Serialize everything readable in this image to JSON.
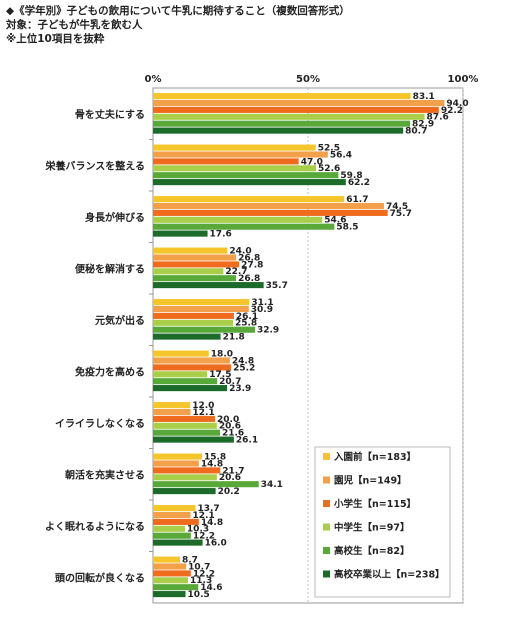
{
  "header": {
    "title": "◆《学年別》子どもの飲用について牛乳に期待すること（複数回答形式）",
    "subject": "対象：子どもが牛乳を飲む人",
    "note": "※上位10項目を抜粋"
  },
  "chart_data": {
    "type": "bar",
    "orientation": "horizontal",
    "xlim": [
      0,
      100
    ],
    "ticks": [
      "0%",
      "50%",
      "100%"
    ],
    "categories": [
      "骨を丈夫にする",
      "栄養バランスを整える",
      "身長が伸びる",
      "便秘を解消する",
      "元気が出る",
      "免疫力を高める",
      "イライラしなくなる",
      "朝活を充実させる",
      "よく眠れるようになる",
      "頭の回転が良くなる"
    ],
    "series": [
      {
        "name": "入園前【n=183】",
        "color": "#f5c62b",
        "values": [
          83.1,
          52.5,
          61.7,
          24.0,
          31.1,
          18.0,
          12.0,
          15.8,
          13.7,
          8.7
        ]
      },
      {
        "name": "園児【n=149】",
        "color": "#f3a04a",
        "values": [
          94.0,
          56.4,
          74.5,
          26.8,
          30.9,
          24.8,
          12.1,
          14.8,
          12.1,
          10.7
        ]
      },
      {
        "name": "小学生【n=115】",
        "color": "#ef6c1f",
        "values": [
          92.2,
          47.0,
          75.7,
          27.8,
          26.1,
          25.2,
          20.0,
          21.7,
          14.8,
          12.2
        ]
      },
      {
        "name": "中学生【n=97】",
        "color": "#a9cf4a",
        "values": [
          87.6,
          52.6,
          54.6,
          22.7,
          25.8,
          17.5,
          20.6,
          20.6,
          10.3,
          11.3
        ]
      },
      {
        "name": "高校生【n=82】",
        "color": "#58a93a",
        "values": [
          82.9,
          59.8,
          58.5,
          26.8,
          32.9,
          20.7,
          21.6,
          34.1,
          12.2,
          14.6
        ]
      },
      {
        "name": "高校卒業以上【n=238】",
        "color": "#1d6b2a",
        "values": [
          80.7,
          62.2,
          17.6,
          35.7,
          21.8,
          23.9,
          26.1,
          20.2,
          16.0,
          10.5
        ]
      }
    ],
    "value_labels": [
      [
        "83.1",
        "52.5",
        "61.7",
        "24.0",
        "31.1",
        "18.0",
        "12.0",
        "15.8",
        "13.7",
        "8.7"
      ],
      [
        "94.0",
        "56.4",
        "74.5",
        "26.8",
        "30.9",
        "24.8",
        "12.1",
        "14.8",
        "12.1",
        "10.7"
      ],
      [
        "92.2",
        "47.0",
        "75.7",
        "27.8",
        "26.1",
        "25.2",
        "20.0",
        "21.7",
        "14.8",
        "12.2"
      ],
      [
        "87.6",
        "52.6",
        "54.6",
        "22.7",
        "25.8",
        "17.5",
        "20.6",
        "20.6",
        "10.3",
        "11.3"
      ],
      [
        "82.9",
        "59.8",
        "58.5",
        "26.8",
        "32.9",
        "20.7",
        "21.6",
        "34.1",
        "12.2",
        "14.6"
      ],
      [
        "80.7",
        "62.2",
        "17.6",
        "35.7",
        "21.8",
        "23.9",
        "26.1",
        "20.2",
        "16.0",
        "10.5"
      ]
    ],
    "legend": "bottom-right",
    "grid": true
  }
}
